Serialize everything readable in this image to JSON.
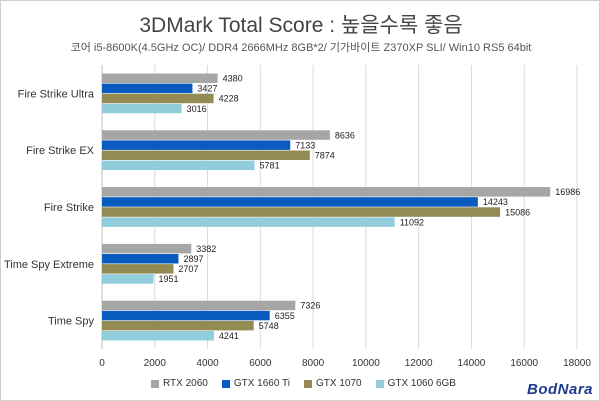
{
  "chart_data": {
    "type": "bar",
    "orientation": "horizontal",
    "title": "3DMark Total Score : 높을수록 좋음",
    "subtitle": "코어 i5-8600K(4.5GHz OC)/ DDR4 2666MHz 8GB*2/ 기가바이트 Z370XP SLI/ Win10 RS5 64bit",
    "categories": [
      "Fire Strike Ultra",
      "Fire Strike EX",
      "Fire Strike",
      "Time Spy Extreme",
      "Time Spy"
    ],
    "series": [
      {
        "name": "RTX 2060",
        "color": "#a6a6a6",
        "values": [
          4380,
          8636,
          16986,
          3382,
          7326
        ]
      },
      {
        "name": "GTX 1660 Ti",
        "color": "#0a5bbf",
        "values": [
          3427,
          7133,
          14243,
          2897,
          6355
        ]
      },
      {
        "name": "GTX 1070",
        "color": "#948a54",
        "values": [
          4228,
          7874,
          15086,
          2707,
          5748
        ]
      },
      {
        "name": "GTX 1060 6GB",
        "color": "#92cddc",
        "values": [
          3016,
          5781,
          11092,
          1951,
          4241
        ]
      }
    ],
    "xlim": [
      0,
      18000
    ],
    "xticks": [
      "0",
      "2000",
      "4000",
      "6000",
      "8000",
      "10000",
      "12000",
      "14000",
      "16000",
      "18000"
    ],
    "grid": true,
    "legend": "bottom"
  },
  "watermark": "BodNara"
}
